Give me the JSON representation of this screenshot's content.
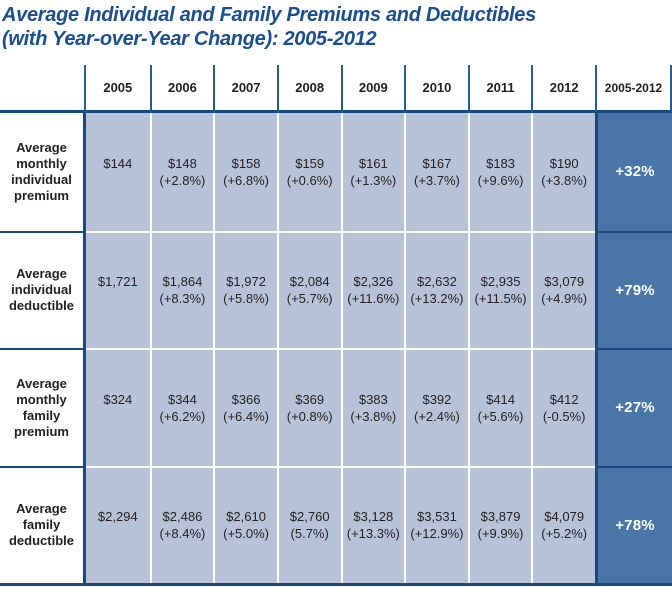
{
  "title": {
    "line1": "Average Individual and Family Premiums and Deductibles",
    "line2": "(with Year-over-Year Change): 2005-2012"
  },
  "colors": {
    "title_navy": "#1b4e8d",
    "line_navy": "#17497e",
    "header_tick_blue": "#2b5c91",
    "cell_light_blue": "#b8c2d8",
    "total_column_blue": "#4a75a7",
    "text_dark": "#231f20",
    "total_text_white": "#ffffff"
  },
  "table": {
    "column_headers": [
      "2005",
      "2006",
      "2007",
      "2008",
      "2009",
      "2010",
      "2011",
      "2012",
      "2005-2012"
    ],
    "rows": [
      {
        "label": "Average monthly individual premium",
        "cells": [
          {
            "value": "$144",
            "change": ""
          },
          {
            "value": "$148",
            "change": "(+2.8%)"
          },
          {
            "value": "$158",
            "change": "(+6.8%)"
          },
          {
            "value": "$159",
            "change": "(+0.6%)"
          },
          {
            "value": "$161",
            "change": "(+1.3%)"
          },
          {
            "value": "$167",
            "change": "(+3.7%)"
          },
          {
            "value": "$183",
            "change": "(+9.6%)"
          },
          {
            "value": "$190",
            "change": "(+3.8%)"
          }
        ],
        "total": "+32%"
      },
      {
        "label": "Average individual deductible",
        "cells": [
          {
            "value": "$1,721",
            "change": ""
          },
          {
            "value": "$1,864",
            "change": "(+8.3%)"
          },
          {
            "value": "$1,972",
            "change": "(+5.8%)"
          },
          {
            "value": "$2,084",
            "change": "(+5.7%)"
          },
          {
            "value": "$2,326",
            "change": "(+11.6%)"
          },
          {
            "value": "$2,632",
            "change": "(+13.2%)"
          },
          {
            "value": "$2,935",
            "change": "(+11.5%)"
          },
          {
            "value": "$3,079",
            "change": "(+4.9%)"
          }
        ],
        "total": "+79%"
      },
      {
        "label": "Average monthly family premium",
        "cells": [
          {
            "value": "$324",
            "change": ""
          },
          {
            "value": "$344",
            "change": "(+6.2%)"
          },
          {
            "value": "$366",
            "change": "(+6.4%)"
          },
          {
            "value": "$369",
            "change": "(+0.8%)"
          },
          {
            "value": "$383",
            "change": "(+3.8%)"
          },
          {
            "value": "$392",
            "change": "(+2.4%)"
          },
          {
            "value": "$414",
            "change": "(+5.6%)"
          },
          {
            "value": "$412",
            "change": "(-0.5%)"
          }
        ],
        "total": "+27%"
      },
      {
        "label": "Average family deductible",
        "cells": [
          {
            "value": "$2,294",
            "change": ""
          },
          {
            "value": "$2,486",
            "change": "(+8.4%)"
          },
          {
            "value": "$2,610",
            "change": "(+5.0%)"
          },
          {
            "value": "$2,760",
            "change": "(5.7%)"
          },
          {
            "value": "$3,128",
            "change": "(+13.3%)"
          },
          {
            "value": "$3,531",
            "change": "(+12.9%)"
          },
          {
            "value": "$3,879",
            "change": "(+9.9%)"
          },
          {
            "value": "$4,079",
            "change": "(+5.2%)"
          }
        ],
        "total": "+78%"
      }
    ]
  },
  "chart_data": {
    "type": "table",
    "title": "Average Individual and Family Premiums and Deductibles (with Year-over-Year Change): 2005-2012",
    "columns": [
      "2005",
      "2006",
      "2007",
      "2008",
      "2009",
      "2010",
      "2011",
      "2012",
      "2005-2012"
    ],
    "rows": [
      {
        "label": "Average monthly individual premium",
        "values_usd": [
          144,
          148,
          158,
          159,
          161,
          167,
          183,
          190
        ],
        "yoy_change_pct": [
          null,
          2.8,
          6.8,
          0.6,
          1.3,
          3.7,
          9.6,
          3.8
        ],
        "total_change_2005_2012_pct": 32
      },
      {
        "label": "Average individual deductible",
        "values_usd": [
          1721,
          1864,
          1972,
          2084,
          2326,
          2632,
          2935,
          3079
        ],
        "yoy_change_pct": [
          null,
          8.3,
          5.8,
          5.7,
          11.6,
          13.2,
          11.5,
          4.9
        ],
        "total_change_2005_2012_pct": 79
      },
      {
        "label": "Average monthly family premium",
        "values_usd": [
          324,
          344,
          366,
          369,
          383,
          392,
          414,
          412
        ],
        "yoy_change_pct": [
          null,
          6.2,
          6.4,
          0.8,
          3.8,
          2.4,
          5.6,
          -0.5
        ],
        "total_change_2005_2012_pct": 27
      },
      {
        "label": "Average family deductible",
        "values_usd": [
          2294,
          2486,
          2610,
          2760,
          3128,
          3531,
          3879,
          4079
        ],
        "yoy_change_pct": [
          null,
          8.4,
          5.0,
          5.7,
          13.3,
          12.9,
          9.9,
          5.2
        ],
        "total_change_2005_2012_pct": 78
      }
    ]
  }
}
